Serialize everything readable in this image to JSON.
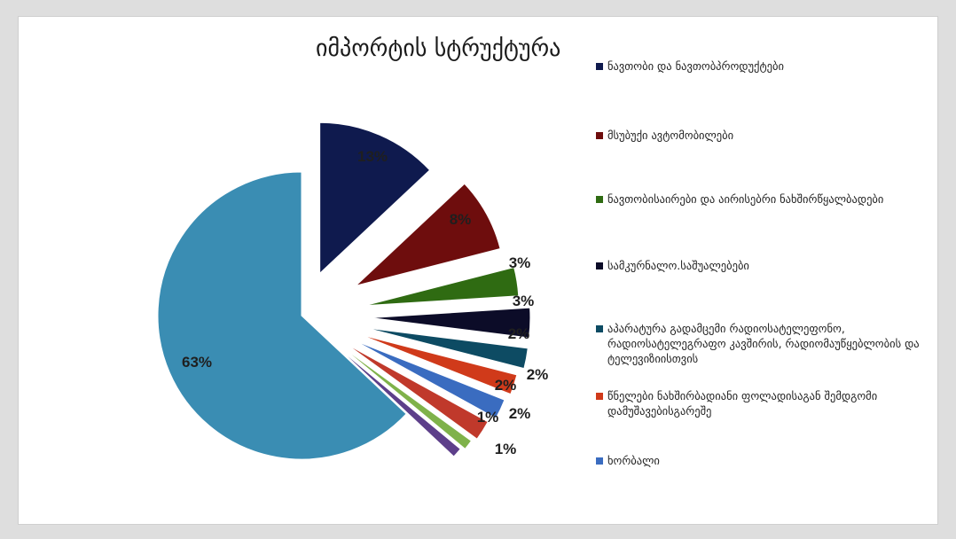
{
  "chart_data": {
    "type": "pie",
    "title": "იმპორტის სტრუქტურა",
    "slices": [
      {
        "label": "ნავთობი და ნავთობპროდუქტები",
        "value": 13,
        "value_label": "13%",
        "color": "#0f1a4e",
        "exploded": true
      },
      {
        "label": "მსუბუქი ავტომობილები",
        "value": 8,
        "value_label": "8%",
        "color": "#6e0d0d",
        "exploded": true
      },
      {
        "label": "ნავთობისაირები და აირისებრი ნახშირწყალბადები",
        "value": 3,
        "value_label": "3%",
        "color": "#2f6b12",
        "exploded": true
      },
      {
        "label": "სამკურნალო.საშუალებები",
        "value": 3,
        "value_label": "3%",
        "color": "#0c0c28",
        "exploded": true
      },
      {
        "label": "აპარატურა გადამცემი რადიოსატელეფონო, რადიოსატელეგრაფო კავშირის, რადიომაუწყებლობის და ტელევიზიისთვის",
        "value": 2,
        "value_label": "2%",
        "color": "#0d4b63",
        "exploded": true
      },
      {
        "label": "წნელები ნახშირბადიანი ფოლადისაგან შემდგომი დამუშავებისგარეშე",
        "value": 2,
        "value_label": "2%",
        "color": "#d03a1a",
        "exploded": true
      },
      {
        "label": "ხორბალი",
        "value": 2,
        "value_label": "2%",
        "color": "#3a6cc0",
        "exploded": true
      },
      {
        "label": "",
        "value": 2,
        "value_label": "2%",
        "color": "#c0392b",
        "exploded": true
      },
      {
        "label": "",
        "value": 1,
        "value_label": "1%",
        "color": "#7fb24a",
        "exploded": true
      },
      {
        "label": "",
        "value": 1,
        "value_label": "1%",
        "color": "#5d3f8a",
        "exploded": true
      },
      {
        "label": "",
        "value": 63,
        "value_label": "63%",
        "color": "#3a8db3",
        "exploded": false
      }
    ],
    "legend_position": "right"
  }
}
